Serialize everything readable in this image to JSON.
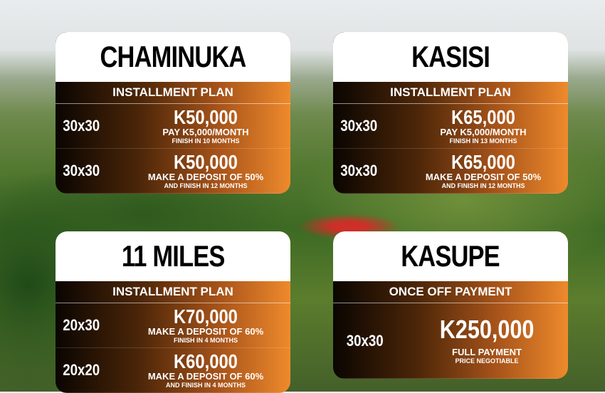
{
  "cards": [
    {
      "title": "CHAMINUKA",
      "plan": "INSTALLMENT PLAN",
      "rows": [
        {
          "size": "30x30",
          "price": "K50,000",
          "line1": "PAY K5,000/MONTH",
          "line2": "FINISH IN 10 MONTHS"
        },
        {
          "size": "30x30",
          "price": "K50,000",
          "line1": "MAKE A DEPOSIT OF 50%",
          "line2": "AND FINISH IN 12 MONTHS"
        }
      ]
    },
    {
      "title": "KASISI",
      "plan": "INSTALLMENT PLAN",
      "rows": [
        {
          "size": "30x30",
          "price": "K65,000",
          "line1": "PAY K5,000/MONTH",
          "line2": "FINISH IN 13 MONTHS"
        },
        {
          "size": "30x30",
          "price": "K65,000",
          "line1": "MAKE A DEPOSIT OF 50%",
          "line2": "AND FINISH IN 12 MONTHS"
        }
      ]
    },
    {
      "title": "11 MILES",
      "plan": "INSTALLMENT PLAN",
      "rows": [
        {
          "size": "20x30",
          "price": "K70,000",
          "line1": "MAKE A DEPOSIT OF 60%",
          "line2": "FINISH IN 4 MONTHS"
        },
        {
          "size": "20x20",
          "price": "K60,000",
          "line1": "MAKE A DEPOSIT OF 60%",
          "line2": "AND FINISH IN 4 MONTHS"
        }
      ]
    },
    {
      "title": "KASUPE",
      "plan": "ONCE OFF PAYMENT",
      "rows": [
        {
          "size": "30x30",
          "price": "K250,000",
          "line1": "FULL PAYMENT",
          "line2": "PRICE NEGOTIABLE"
        }
      ]
    }
  ]
}
